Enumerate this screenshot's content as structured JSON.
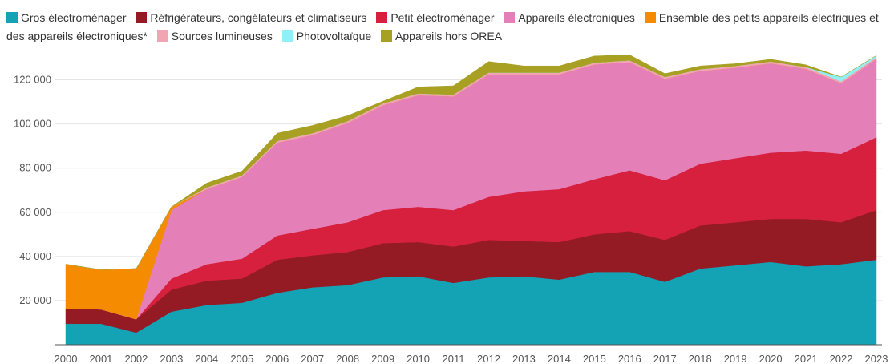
{
  "chart_data": {
    "type": "area",
    "stacked": true,
    "x": [
      "2000",
      "2001",
      "2002",
      "2003",
      "2004",
      "2005",
      "2006",
      "2007",
      "2008",
      "2009",
      "2010",
      "2011",
      "2012",
      "2013",
      "2014",
      "2015",
      "2016",
      "2017",
      "2018",
      "2019",
      "2020",
      "2021",
      "2022",
      "2023"
    ],
    "ylim": [
      0,
      130000
    ],
    "yticks": [
      "20 000",
      "40 000",
      "60 000",
      "80 000",
      "100 000",
      "120 000"
    ],
    "ytick_values": [
      20000,
      40000,
      60000,
      80000,
      100000,
      120000
    ],
    "grid": true,
    "legend_position": "top",
    "series": [
      {
        "name": "Gros électroménager",
        "color": "#13a3b5",
        "values": [
          9500,
          9500,
          5500,
          15000,
          18000,
          19000,
          23500,
          26000,
          27000,
          30500,
          31000,
          28000,
          30500,
          31000,
          29500,
          33000,
          33000,
          28500,
          34500,
          36000,
          37500,
          35500,
          36500,
          38500
        ]
      },
      {
        "name": "Réfrigérateurs, congélateurs et climatiseurs",
        "color": "#941a24",
        "values": [
          7000,
          6500,
          6000,
          10000,
          11000,
          11000,
          15000,
          14500,
          15000,
          15500,
          15500,
          16500,
          17000,
          16000,
          17000,
          17000,
          18500,
          19000,
          19500,
          19500,
          19500,
          21500,
          19000,
          22500
        ]
      },
      {
        "name": "Petit électroménager",
        "color": "#d6203d",
        "values": [
          0,
          0,
          0,
          5000,
          7500,
          9000,
          11000,
          12000,
          13500,
          15000,
          16000,
          16500,
          19500,
          22500,
          24000,
          25000,
          27500,
          27000,
          28000,
          29000,
          30000,
          31000,
          31000,
          33000
        ]
      },
      {
        "name": "Appareils électroniques",
        "color": "#e57fb8",
        "values": [
          0,
          0,
          0,
          31000,
          34000,
          37000,
          42000,
          42500,
          45000,
          47500,
          50500,
          51500,
          55500,
          53000,
          52000,
          52000,
          49000,
          46000,
          42000,
          41000,
          40500,
          37000,
          32000,
          35500
        ]
      },
      {
        "name": "Ensemble des petits appareils électriques et des appareils électroniques*",
        "color": "#f48b00",
        "values": [
          20000,
          18000,
          23000,
          1500,
          0,
          0,
          0,
          0,
          0,
          0,
          0,
          0,
          0,
          0,
          0,
          0,
          0,
          0,
          0,
          0,
          0,
          0,
          0,
          0
        ]
      },
      {
        "name": "Sources lumineuses",
        "color": "#f2a4b2",
        "values": [
          0,
          0,
          0,
          0,
          700,
          700,
          800,
          800,
          800,
          800,
          800,
          800,
          800,
          800,
          800,
          800,
          800,
          800,
          800,
          800,
          800,
          800,
          800,
          800
        ]
      },
      {
        "name": "Photovoltaïque",
        "color": "#8ff0f8",
        "values": [
          0,
          0,
          0,
          0,
          0,
          0,
          0,
          0,
          0,
          0,
          0,
          0,
          0,
          0,
          0,
          0,
          0,
          0,
          0,
          0,
          0,
          0,
          2000,
          700
        ]
      },
      {
        "name": "Appareils hors OREA",
        "color": "#a8a023",
        "values": [
          0,
          0,
          0,
          0,
          2000,
          2000,
          3500,
          3500,
          2500,
          1000,
          3000,
          4000,
          5000,
          3000,
          3000,
          3000,
          2500,
          1500,
          1500,
          1000,
          1000,
          1000,
          0,
          0
        ]
      }
    ]
  }
}
